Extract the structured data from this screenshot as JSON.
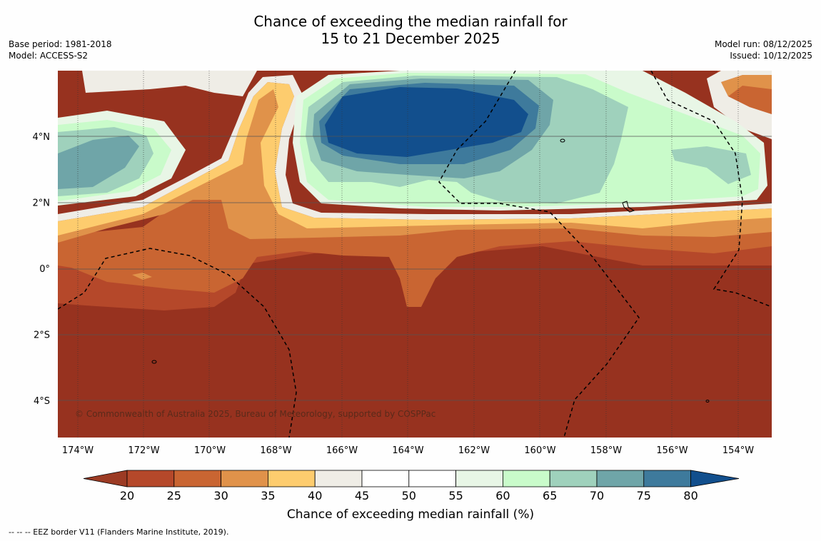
{
  "title_line1": "Chance of exceeding the median rainfall for",
  "title_line2": "15 to 21 December 2025",
  "base_period": "Base period: 1981-2018",
  "model": "Model: ACCESS-S2",
  "model_run": "Model run: 08/12/2025",
  "issued": "Issued: 10/12/2025",
  "copyright": "© Commonwealth of Australia 2025, Bureau of Meteorology, supported by COSPPac",
  "lon_labels": [
    "174°W",
    "172°W",
    "170°W",
    "168°W",
    "166°W",
    "164°W",
    "162°W",
    "160°W",
    "158°W",
    "156°W",
    "154°W"
  ],
  "lat_labels": [
    "4°N",
    "2°N",
    "0°",
    "2°S",
    "4°S"
  ],
  "colorbar": {
    "label": "Chance of exceeding median rainfall (%)",
    "ticks": [
      "20",
      "25",
      "30",
      "35",
      "40",
      "45",
      "50",
      "55",
      "60",
      "65",
      "70",
      "75",
      "80"
    ],
    "colors": [
      "#b5482a",
      "#c96532",
      "#e0924a",
      "#fdcc6e",
      "#efede6",
      "#ffffff",
      "#ffffff",
      "#e8f6e6",
      "#c9fbca",
      "#9fd1bc",
      "#6fa5a8",
      "#3e7a9c"
    ],
    "under_color": "#9c3b24",
    "over_color": "#124f8d"
  },
  "colors": {
    "low": "#97321f",
    "very_wet": "#124f8d"
  },
  "footer": "--  --  -- EEZ border V11 (Flanders Marine Institute, 2019)."
}
